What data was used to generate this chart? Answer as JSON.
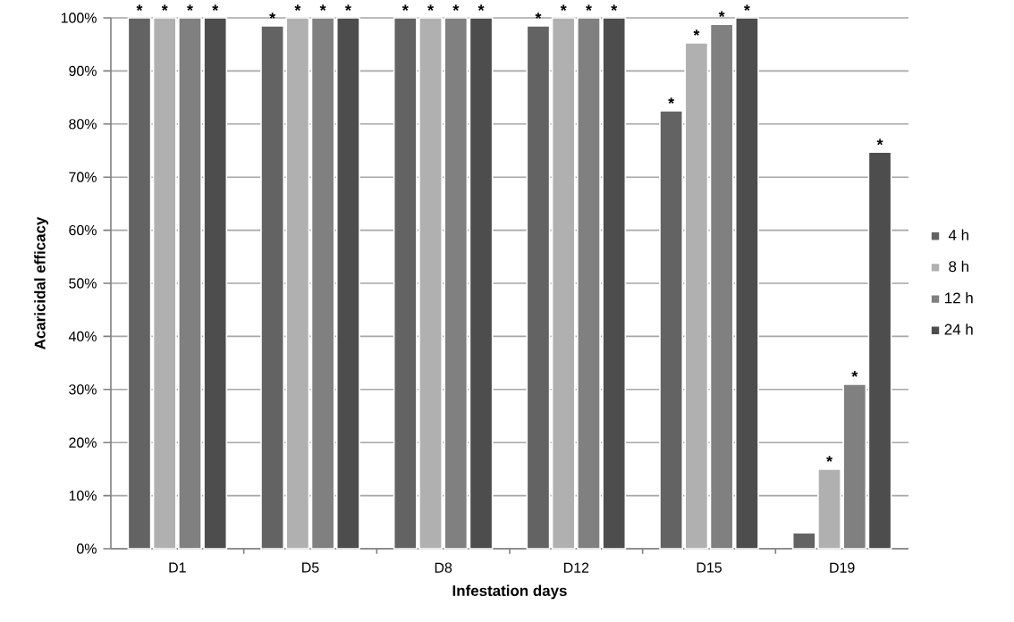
{
  "chart_data": {
    "type": "bar",
    "xlabel": "Infestation days",
    "ylabel": "Acaricidal efficacy",
    "categories": [
      "D1",
      "D5",
      "D8",
      "D12",
      "D15",
      "D19"
    ],
    "series": [
      {
        "name": "4 h",
        "color": "#636363",
        "values": [
          100,
          98.5,
          100,
          98.5,
          82.5,
          3
        ],
        "value_labels": [
          "*",
          "*",
          "*",
          "*",
          "*",
          null
        ]
      },
      {
        "name": "8 h",
        "color": "#b0b0b0",
        "values": [
          100,
          100,
          100,
          100,
          95.3,
          15
        ],
        "value_labels": [
          "*",
          "*",
          "*",
          "*",
          "*",
          "*"
        ]
      },
      {
        "name": "12 h",
        "color": "#808080",
        "values": [
          100,
          100,
          100,
          100,
          98.8,
          31
        ],
        "value_labels": [
          "*",
          "*",
          "*",
          "*",
          "*",
          "*"
        ]
      },
      {
        "name": "24 h",
        "color": "#4d4d4d",
        "values": [
          100,
          100,
          100,
          100,
          100,
          74.7
        ],
        "value_labels": [
          "*",
          "*",
          "*",
          "*",
          "*",
          "*"
        ]
      }
    ],
    "ylim": [
      0,
      100
    ],
    "yticks": [
      {
        "value": 0,
        "label": "0%"
      },
      {
        "value": 10,
        "label": "10%"
      },
      {
        "value": 20,
        "label": "20%"
      },
      {
        "value": 30,
        "label": "30%"
      },
      {
        "value": 40,
        "label": "40%"
      },
      {
        "value": 50,
        "label": "50%"
      },
      {
        "value": 60,
        "label": "60%"
      },
      {
        "value": 70,
        "label": "70%"
      },
      {
        "value": 80,
        "label": "80%"
      },
      {
        "value": 90,
        "label": "90%"
      },
      {
        "value": 100,
        "label": "100%"
      }
    ],
    "grid": "y",
    "legend": "right"
  }
}
